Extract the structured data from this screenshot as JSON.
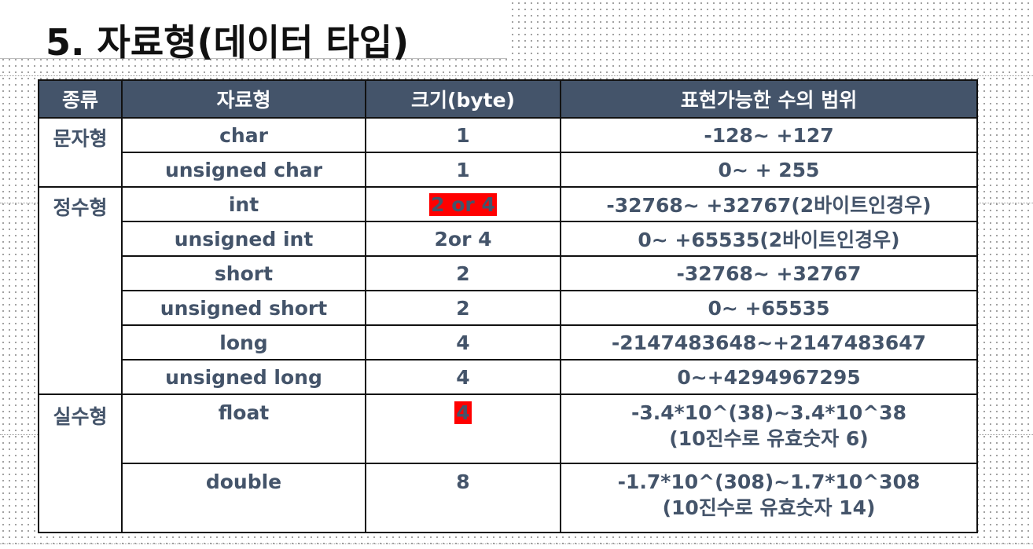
{
  "title": "5. 자료형(데이터 타입)",
  "accent_colors": {
    "header_bg": "#44546a",
    "highlight": "#ff0000",
    "text": "#44546a"
  },
  "table": {
    "headers": [
      "종류",
      "자료형",
      "크기(byte)",
      "표현가능한 수의 범위"
    ],
    "groups": [
      {
        "category": "문자형",
        "rows": [
          {
            "type": "char",
            "size": "1",
            "range": [
              "-128~ +127"
            ]
          },
          {
            "type": "unsigned char",
            "size": "1",
            "range": [
              "0~ + 255"
            ]
          }
        ]
      },
      {
        "category": "정수형",
        "rows": [
          {
            "type": "int",
            "size": "2 or 4",
            "size_highlighted": true,
            "range": [
              "-32768~ +32767(2바이트인경우)"
            ]
          },
          {
            "type": "unsigned int",
            "size": "2or 4",
            "range": [
              "0~ +65535(2바이트인경우)"
            ]
          },
          {
            "type": "short",
            "size": "2",
            "range": [
              "-32768~ +32767"
            ]
          },
          {
            "type": "unsigned short",
            "size": "2",
            "range": [
              "0~ +65535"
            ]
          },
          {
            "type": "long",
            "size": "4",
            "range": [
              "-2147483648~+2147483647"
            ]
          },
          {
            "type": "unsigned long",
            "size": "4",
            "range": [
              "0~+4294967295"
            ]
          }
        ]
      },
      {
        "category": "실수형",
        "rows": [
          {
            "type": "float",
            "size": "4",
            "size_highlighted": true,
            "range": [
              "-3.4*10^(38)~3.4*10^38",
              "(10진수로 유효숫자 6)"
            ]
          },
          {
            "type": "double",
            "size": "8",
            "range": [
              "-1.7*10^(308)~1.7*10^308",
              "(10진수로 유효숫자 14)"
            ]
          }
        ]
      }
    ]
  }
}
